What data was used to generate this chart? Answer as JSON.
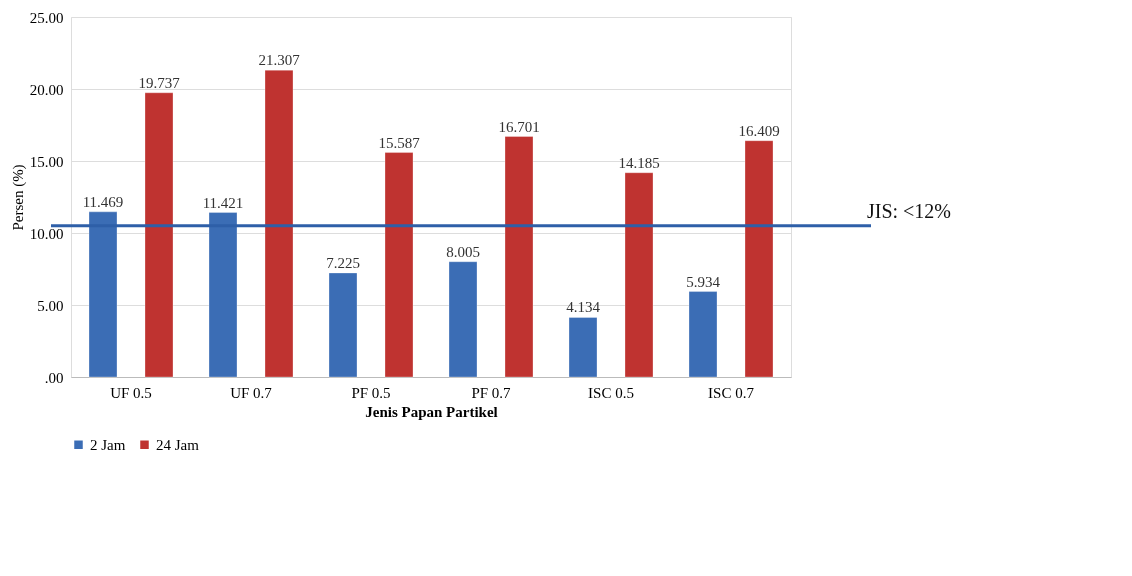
{
  "chart_data": {
    "type": "bar",
    "xlabel": "Jenis Papan Partikel",
    "ylabel": "Persen (%)",
    "categories": [
      "UF 0.5",
      "UF 0.7",
      "PF 0.5",
      "PF 0.7",
      "ISC 0.5",
      "ISC 0.7"
    ],
    "series": [
      {
        "name": "2 Jam",
        "color": "#3b6db5",
        "values": [
          11.469,
          11.421,
          7.225,
          8.005,
          4.134,
          5.934
        ]
      },
      {
        "name": "24 Jam",
        "color": "#bf3330",
        "values": [
          19.737,
          21.307,
          15.587,
          16.701,
          14.185,
          16.409
        ]
      }
    ],
    "ylim": [
      0,
      25
    ],
    "yticks": [
      {
        "value": 0,
        "label": ".00"
      },
      {
        "value": 5,
        "label": "5.00"
      },
      {
        "value": 10,
        "label": "10.00"
      },
      {
        "value": 15,
        "label": "15.00"
      },
      {
        "value": 20,
        "label": "20.00"
      },
      {
        "value": 25,
        "label": "25.00"
      }
    ],
    "grid": "y",
    "legend": "bottom",
    "data_labels": true,
    "ref_lines": [
      {
        "axis": "y",
        "value": 10.5,
        "label": "JIS: <12%",
        "color": "#2e5fa8"
      }
    ]
  }
}
